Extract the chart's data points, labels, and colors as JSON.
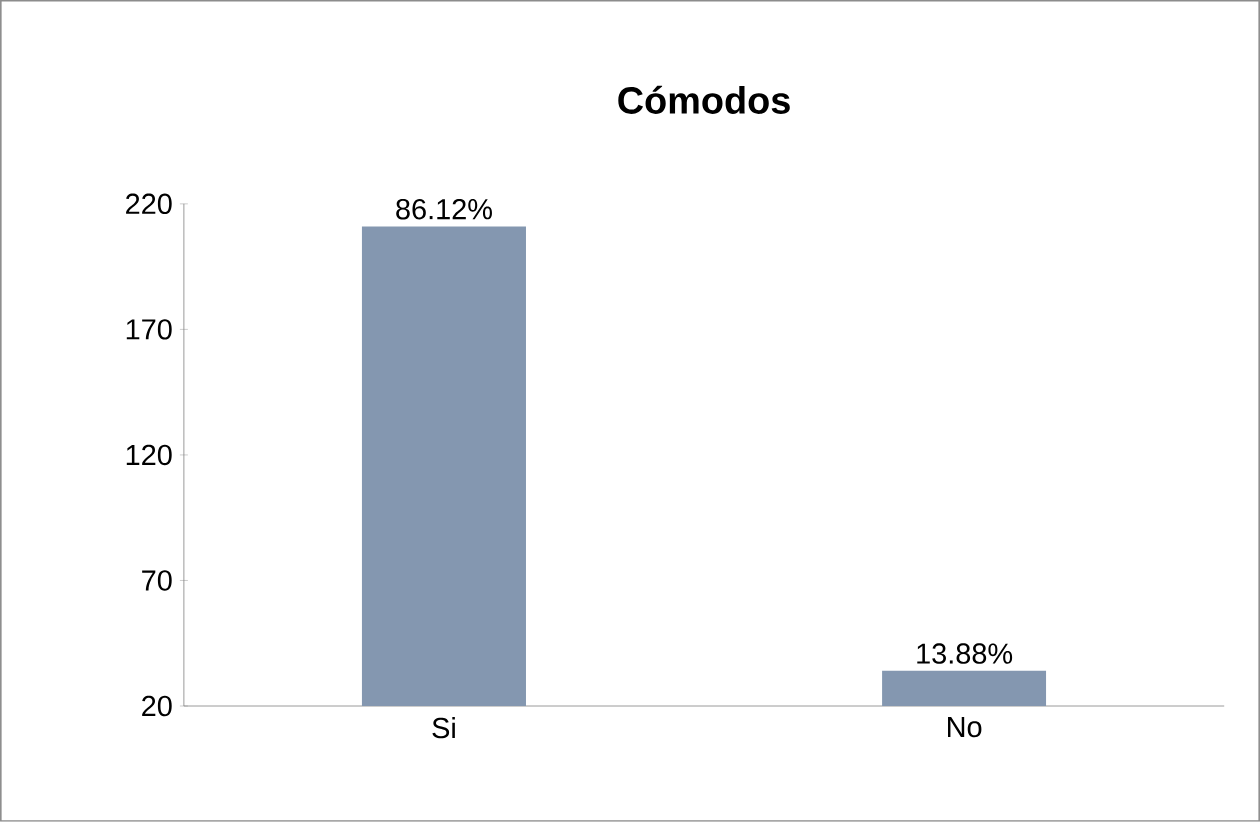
{
  "chart_data": {
    "type": "bar",
    "title": "Cómodos",
    "categories": [
      "Si",
      "No"
    ],
    "values": [
      211,
      34
    ],
    "annotations": [
      {
        "text": "86.12%",
        "x": "Si",
        "y": 211
      },
      {
        "text": "13.88%",
        "x": "No",
        "y": 34
      }
    ],
    "color": "#8497b0",
    "ylim": [
      20,
      220
    ],
    "yticks": [
      20,
      70,
      120,
      170,
      220
    ],
    "grid": false
  }
}
